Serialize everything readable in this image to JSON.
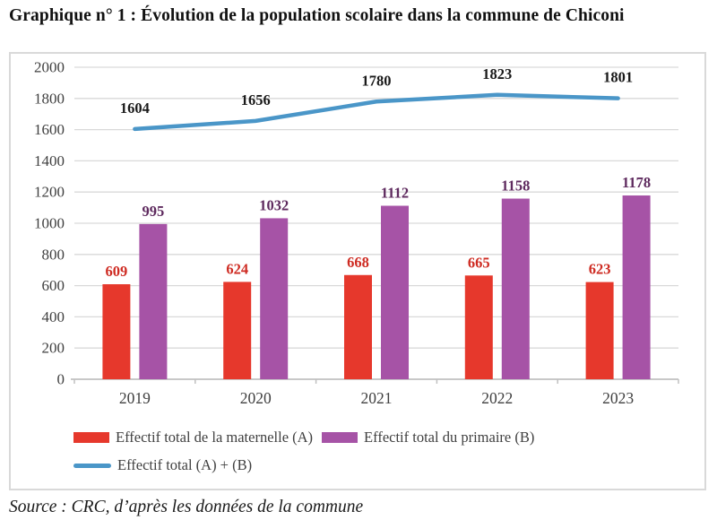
{
  "page": {
    "title": "Graphique n° 1 : Évolution de la population scolaire dans la commune de Chiconi",
    "source": "Source : CRC, d’après les données de la commune"
  },
  "chart_data": {
    "type": "bar",
    "subtype": "grouped-bars-with-line-overlay",
    "title": "Graphique n° 1 : Évolution de la population scolaire dans la commune de Chiconi",
    "categories": [
      "2019",
      "2020",
      "2021",
      "2022",
      "2023"
    ],
    "series": [
      {
        "name": "Effectif total de la maternelle (A)",
        "kind": "bar",
        "color": "#E6382C",
        "label_color": "#CE2B22",
        "values": [
          609,
          624,
          668,
          665,
          623
        ]
      },
      {
        "name": "Effectif total du primaire (B)",
        "kind": "bar",
        "color": "#A653A6",
        "label_color": "#5E2A5E",
        "values": [
          995,
          1032,
          1112,
          1158,
          1178
        ]
      },
      {
        "name": "Effectif total  (A) + (B)",
        "kind": "line",
        "color": "#4A96C8",
        "label_color": "#1A1A1A",
        "values": [
          1604,
          1656,
          1780,
          1823,
          1801
        ]
      }
    ],
    "xlabel": "",
    "ylabel": "",
    "ylim": [
      0,
      2000
    ],
    "ytick_step": 200,
    "grid": true,
    "legend_position": "bottom-left",
    "styles": {
      "grid_color": "#D9D9D9",
      "axis_color": "#C0C0C0",
      "tick_label_color": "#3F3F3F",
      "legend_text_color": "#404040",
      "chart_border_color": "#D9D9D9",
      "background": "#FFFFFF"
    }
  }
}
